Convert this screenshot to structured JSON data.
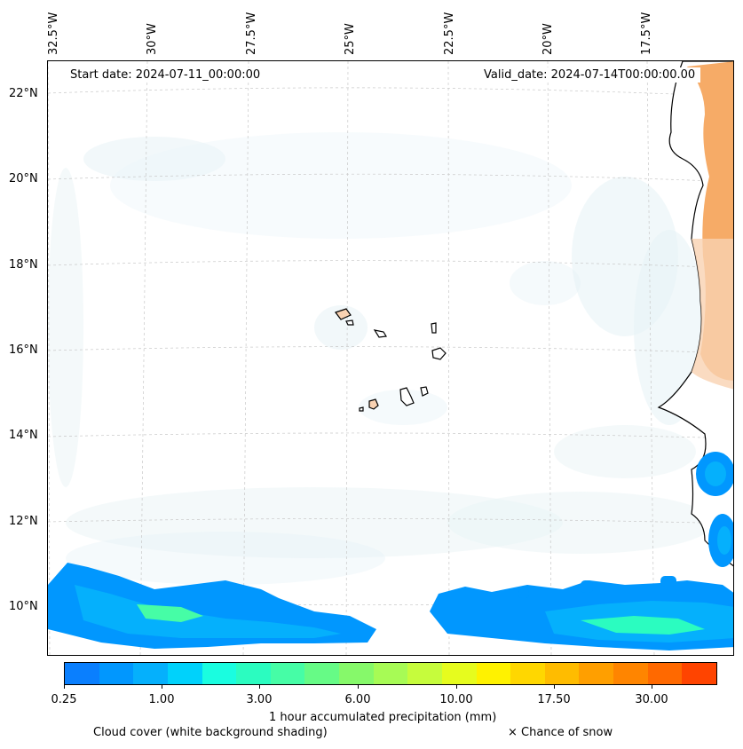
{
  "map": {
    "start_date": "Start date: 2024-07-11_00:00:00",
    "valid_date": "Valid_date: 2024-07-14T00:00:00.00",
    "lon_labels": [
      "32.5°W",
      "30°W",
      "27.5°W",
      "25°W",
      "22.5°W",
      "20°W",
      "17.5°W"
    ],
    "lat_labels": [
      "22°N",
      "20°N",
      "18°N",
      "16°N",
      "14°N",
      "12°N",
      "10°N"
    ]
  },
  "colorbar": {
    "colors": [
      "#0a7ffe",
      "#0197fe",
      "#05b0fc",
      "#00d2fb",
      "#1afde0",
      "#2bfcc0",
      "#46fda6",
      "#66fb86",
      "#86f96a",
      "#a7fb55",
      "#c6fc3c",
      "#e6fc1e",
      "#fff200",
      "#ffd700",
      "#ffbc00",
      "#ff9f00",
      "#ff8500",
      "#ff6900",
      "#ff4400"
    ],
    "tick_labels": [
      "0.25",
      "1.00",
      "3.00",
      "6.00",
      "10.00",
      "17.50",
      "30.00"
    ],
    "label": "1 hour accumulated precipitation (mm)"
  },
  "legend": {
    "cloud_cover": "Cloud cover (white background shading)",
    "snow": "× Chance of snow"
  },
  "colors": {
    "cloud": "#e4f1f5",
    "land_warm": "#f5a65f",
    "land_light": "#f9d2b2"
  }
}
